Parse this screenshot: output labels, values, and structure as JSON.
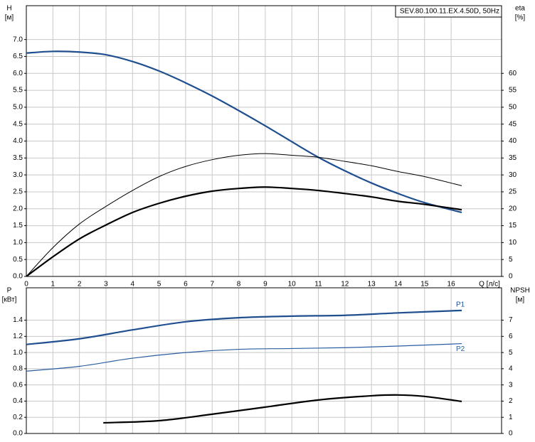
{
  "chart_data": [
    {
      "type": "line",
      "title": "SEV.80.100.11.EX.4.50D, 50Hz",
      "xlabel": "Q [л/с]",
      "ylabel": [
        "H",
        "[м]"
      ],
      "y2label": [
        "eta",
        "[%]"
      ],
      "grid": true,
      "xlim": [
        0,
        17.9
      ],
      "xticks": [
        0,
        1,
        2,
        3,
        4,
        5,
        6,
        7,
        8,
        9,
        10,
        11,
        12,
        13,
        14,
        15,
        16
      ],
      "ylim": [
        0,
        8
      ],
      "yticks": [
        {
          "value": 0,
          "label": "0.0"
        },
        {
          "value": 0.5,
          "label": "0.5"
        },
        {
          "value": 1,
          "label": "1.0"
        },
        {
          "value": 1.5,
          "label": "1.5"
        },
        {
          "value": 2,
          "label": "2.0"
        },
        {
          "value": 2.5,
          "label": "2.5"
        },
        {
          "value": 3,
          "label": "3.0"
        },
        {
          "value": 3.5,
          "label": "3.5"
        },
        {
          "value": 4,
          "label": "4.0"
        },
        {
          "value": 4.5,
          "label": "4.5"
        },
        {
          "value": 5,
          "label": "5.0"
        },
        {
          "value": 5.5,
          "label": "5.5"
        },
        {
          "value": 6,
          "label": "6.0"
        },
        {
          "value": 6.5,
          "label": "6.5"
        },
        {
          "value": 7,
          "label": "7.0"
        }
      ],
      "y2lim": [
        0,
        80
      ],
      "y2ticks": [
        0,
        5,
        10,
        15,
        20,
        25,
        30,
        35,
        40,
        45,
        50,
        55,
        60
      ],
      "x": [
        0,
        1,
        2,
        3,
        4,
        5,
        6,
        7,
        8,
        9,
        10,
        11,
        12,
        13,
        14,
        15,
        16.4
      ],
      "series": [
        {
          "color": "#1f4f8f",
          "line_width": 2.2,
          "values": [
            6.6,
            6.65,
            6.63,
            6.55,
            6.35,
            6.07,
            5.72,
            5.33,
            4.9,
            4.45,
            3.98,
            3.52,
            3.12,
            2.76,
            2.45,
            2.18,
            1.89
          ]
        },
        {
          "color": "#000000",
          "line_width": 1,
          "axis": "y2",
          "values": [
            0,
            8.5,
            15.5,
            20.7,
            25.4,
            29.5,
            32.5,
            34.5,
            35.8,
            36.3,
            35.8,
            35.2,
            34,
            32.7,
            31,
            29.5,
            26.8
          ]
        },
        {
          "color": "#000000",
          "line_width": 2.2,
          "axis": "y2",
          "values": [
            0,
            5.8,
            11.1,
            15.2,
            18.9,
            21.6,
            23.7,
            25.2,
            26,
            26.4,
            26,
            25.4,
            24.5,
            23.5,
            22.2,
            21.3,
            19.7
          ]
        }
      ]
    },
    {
      "type": "line",
      "ylabel": [
        "P",
        "[кВт]"
      ],
      "y2label": [
        "NPSH",
        "[м]"
      ],
      "grid": true,
      "ylim": [
        0,
        1.8
      ],
      "yticks": [
        {
          "value": 0,
          "label": "0.0"
        },
        {
          "value": 0.2,
          "label": "0.2"
        },
        {
          "value": 0.4,
          "label": "0.4"
        },
        {
          "value": 0.6,
          "label": "0.6"
        },
        {
          "value": 0.8,
          "label": "0.8"
        },
        {
          "value": 1,
          "label": "1.0"
        },
        {
          "value": 1.2,
          "label": "1.2"
        },
        {
          "value": 1.4,
          "label": "1.4"
        }
      ],
      "y2lim": [
        0,
        9
      ],
      "y2ticks": [
        0,
        1,
        2,
        3,
        4,
        5,
        6,
        7
      ],
      "series": [
        {
          "name": "P1",
          "color": "#1f4f8f",
          "line_width": 2.2,
          "x": [
            0,
            2,
            4,
            6,
            8,
            10,
            12,
            14,
            16.4
          ],
          "values": [
            1.1,
            1.17,
            1.28,
            1.38,
            1.43,
            1.45,
            1.46,
            1.49,
            1.52
          ]
        },
        {
          "name": "P2",
          "color": "#2a5d9f",
          "line_width": 1.2,
          "x": [
            0,
            2,
            4,
            6,
            8,
            10,
            12,
            14,
            16.4
          ],
          "values": [
            0.77,
            0.83,
            0.93,
            1.0,
            1.04,
            1.05,
            1.06,
            1.08,
            1.11
          ]
        },
        {
          "color": "#000000",
          "line_width": 2.2,
          "axis": "y2",
          "x": [
            2.9,
            5,
            7,
            9,
            11,
            13,
            14,
            15,
            16.4
          ],
          "values": [
            0.66,
            0.79,
            1.19,
            1.63,
            2.07,
            2.33,
            2.38,
            2.29,
            1.98
          ]
        }
      ]
    }
  ]
}
